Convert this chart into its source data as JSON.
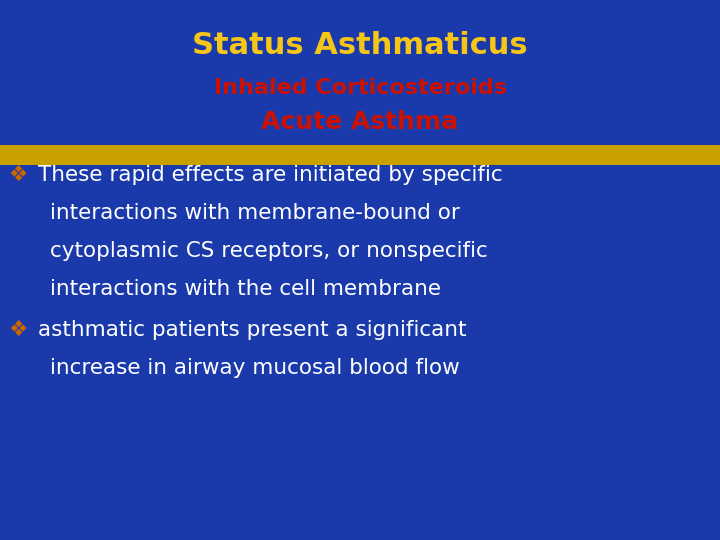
{
  "background_color": "#1a3aab",
  "title": "Status Asthmaticus",
  "title_color": "#f5c518",
  "title_fontsize": 22,
  "subtitle1": "Inhaled Corticosteroids",
  "subtitle1_color": "#cc1100",
  "subtitle1_fontsize": 16,
  "subtitle2": "Acute Asthma",
  "subtitle2_color": "#cc1100",
  "subtitle2_fontsize": 18,
  "highlight_color": "#c8a000",
  "bullet_color": "#cc6600",
  "bullet_char": "❖",
  "body_color": "#ffffff",
  "body_fontsize": 15.5,
  "bullet1_line1": "These rapid effects are initiated by specific",
  "bullet1_line2": "interactions with membrane-bound or",
  "bullet1_line3": "cytoplasmic CS receptors, or nonspecific",
  "bullet1_line4": "interactions with the cell membrane",
  "bullet2_line1": "asthmatic patients present a significant",
  "bullet2_line2": "increase in airway mucosal blood flow"
}
